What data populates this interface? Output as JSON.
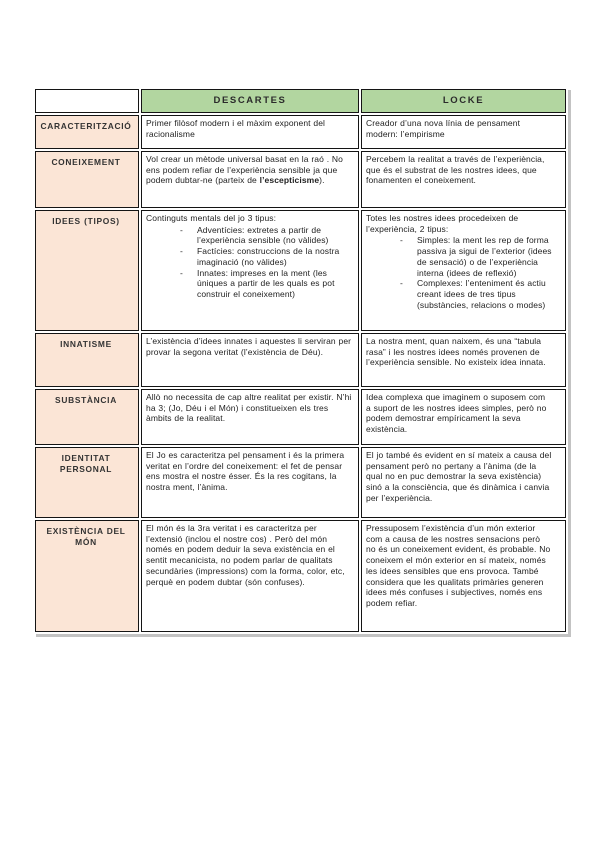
{
  "colors": {
    "header_bg": "#b2d6a0",
    "label_bg": "#fbe5d6"
  },
  "table": {
    "bullet_marker": "-",
    "headers": [
      "",
      "DESCARTES",
      "LOCKE"
    ],
    "rows": [
      {
        "label": "CARACTERITZACIÓ",
        "descartes": {
          "text": "Primer filòsof modern i el màxim exponent del racionalisme"
        },
        "locke": {
          "text": "Creador d’una nova línia de pensament modern: l’empirisme"
        }
      },
      {
        "label": "CONEIXEMENT",
        "descartes": {
          "pre": "Vol crear un mètode universal basat en la raó . No ens podem refiar de l’experiència sensible ja que podem dubtar-ne (parteix de ",
          "bold": "l’escepticisme",
          "post": ")."
        },
        "locke": {
          "text": "Percebem  la realitat a través de l’experiència, que és el substrat de les nostres idees,  que fonamenten el coneixement."
        }
      },
      {
        "label": "IDEES (TIPOS)",
        "descartes": {
          "intro": "Continguts mentals del jo 3 tipus:",
          "bullets": [
            "Adventícies: extretes a partir de l’experiència sensible (no vàlides)",
            "Factícies: construccions de la nostra imaginació (no vàlides)",
            "Innates: impreses en la ment  (les úniques a partir de les quals es pot construir el coneixement)"
          ]
        },
        "locke": {
          "intro": "Totes les nostres idees procedeixen de l’experiència, 2 tipus:",
          "bullets": [
            "Simples: la ment les rep de forma passiva ja sigui de l’exterior (idees de sensació) o de l’experiència interna (idees de reflexió)",
            "Complexes: l’enteniment  és actiu creant idees de tres tipus (substàncies, relacions o modes)"
          ]
        }
      },
      {
        "label": "INNATISME",
        "descartes": {
          "text": "L’existència d’idees innates i aquestes li serviran per provar la segona veritat (l’existència de Déu)."
        },
        "locke": {
          "text": "La nostra ment, quan naixem, és una “tabula rasa” i les nostres idees només provenen de l’experiència sensible. No existeix idea innata."
        }
      },
      {
        "label": "SUBSTÀNCIA",
        "descartes": {
          "text": "Allò no necessita de cap altre realitat per existir. N’hi ha 3; (Jo, Déu i el Món) i constitueixen els tres àmbits de la realitat."
        },
        "locke": {
          "text": "Idea complexa que imaginem o suposem com a suport de les nostres idees simples, però no podem demostrar empíricament la seva existència."
        }
      },
      {
        "label": "IDENTITAT PERSONAL",
        "descartes": {
          "text": "El Jo es caracteritza pel pensament i és la primera veritat en l’ordre del coneixement: el fet de pensar ens mostra el nostre ésser.  És la res cogitans, la nostra ment, l’ànima."
        },
        "locke": {
          "text": "El jo també és evident en sí mateix a causa del pensament  però no pertany a l’ànima (de la qual no en puc demostrar la seva existència) sinó a la consciència, que és dinàmica i canvia per l’experiència."
        }
      },
      {
        "label": "EXISTÈNCIA DEL MÓN",
        "descartes": {
          "text": "El món és la 3ra veritat i es caracteritza per l’extensió  (inclou el nostre cos) .  Però del món només en podem deduir la seva existència en el sentit mecanicista, no podem parlar de qualitats secundàries (impressions) com la forma, color, etc, perquè en podem dubtar (són confuses)."
        },
        "locke": {
          "text": "Pressuposem l’existència d’un món exterior com a causa de les nostres sensacions però no és un coneixement evident, és probable. No coneixem el món exterior en sí mateix, només les idees sensibles que ens provoca. També considera que les qualitats primàries generen idees més confuses i subjectives, només ens podem refiar."
        }
      }
    ]
  }
}
